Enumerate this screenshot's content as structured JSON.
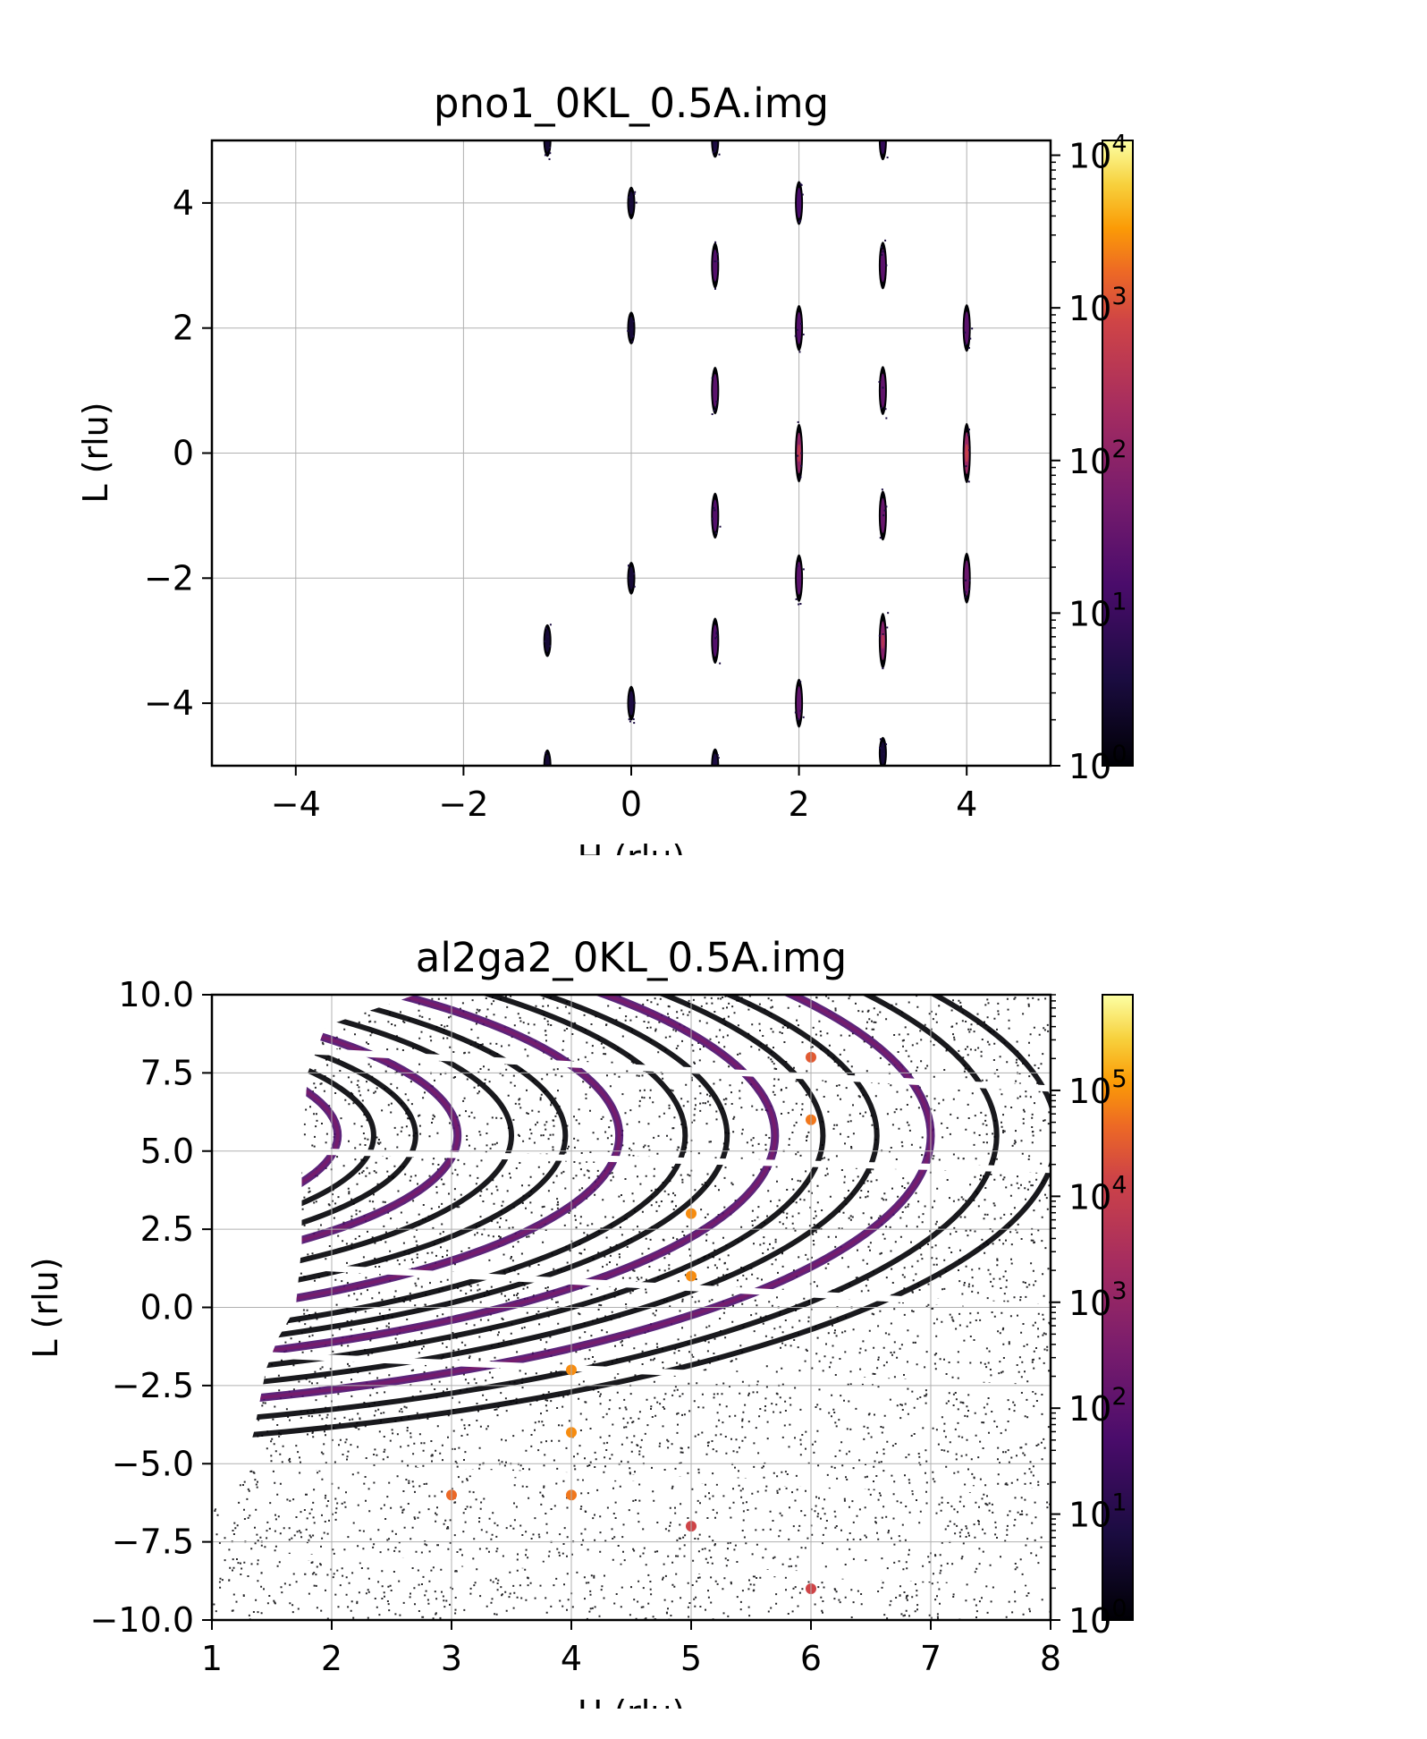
{
  "chart_data": [
    {
      "type": "heatmap",
      "title": "pno1_0KL_0.5A.img",
      "xlabel": "H (rlu)",
      "ylabel": "L (rlu)",
      "xlim": [
        -5,
        5
      ],
      "ylim": [
        -5,
        5
      ],
      "xticks": [
        -4,
        -2,
        0,
        2,
        4
      ],
      "xtick_labels": [
        "−4",
        "−2",
        "0",
        "2",
        "4"
      ],
      "yticks": [
        -4,
        -2,
        0,
        2,
        4
      ],
      "ytick_labels": [
        "−4",
        "−2",
        "0",
        "2",
        "4"
      ],
      "grid": true,
      "colorbar": {
        "scale": "log",
        "colormap": "inferno",
        "range": [
          1,
          12500
        ],
        "ticks": [
          1,
          10,
          100,
          1000,
          10000
        ],
        "tick_labels": [
          "10",
          "10",
          "10",
          "10",
          "10"
        ],
        "tick_exponents": [
          "0",
          "1",
          "2",
          "3",
          "4"
        ]
      },
      "peaks": [
        {
          "h": -1,
          "l": 5,
          "i": 3
        },
        {
          "h": 1,
          "l": 5,
          "i": 4
        },
        {
          "h": 3,
          "l": 5,
          "i": 8
        },
        {
          "h": 0,
          "l": 4,
          "i": 3
        },
        {
          "h": 2,
          "l": 4,
          "i": 15
        },
        {
          "h": 1,
          "l": 3,
          "i": 20
        },
        {
          "h": 3,
          "l": 3,
          "i": 25
        },
        {
          "h": 0,
          "l": 2,
          "i": 3
        },
        {
          "h": 2,
          "l": 2,
          "i": 20
        },
        {
          "h": 4,
          "l": 2,
          "i": 25
        },
        {
          "h": 1,
          "l": 1,
          "i": 25
        },
        {
          "h": 3,
          "l": 1,
          "i": 30
        },
        {
          "h": 2,
          "l": 0,
          "i": 120
        },
        {
          "h": 4,
          "l": 0,
          "i": 150
        },
        {
          "h": 1,
          "l": -1,
          "i": 20
        },
        {
          "h": 3,
          "l": -1,
          "i": 35
        },
        {
          "h": 0,
          "l": -2,
          "i": 3
        },
        {
          "h": 2,
          "l": -2,
          "i": 25
        },
        {
          "h": 4,
          "l": -2,
          "i": 40
        },
        {
          "h": -1,
          "l": -3,
          "i": 3
        },
        {
          "h": 1,
          "l": -3,
          "i": 20
        },
        {
          "h": 3,
          "l": -3,
          "i": 80
        },
        {
          "h": 0,
          "l": -4,
          "i": 4
        },
        {
          "h": 2,
          "l": -4,
          "i": 30
        },
        {
          "h": -1,
          "l": -5,
          "i": 3
        },
        {
          "h": 1,
          "l": -5,
          "i": 4
        },
        {
          "h": 3,
          "l": -4.8,
          "i": 3
        }
      ]
    },
    {
      "type": "heatmap",
      "title": "al2ga2_0KL_0.5A.img",
      "xlabel": "H (rlu)",
      "ylabel": "L (rlu)",
      "xlim": [
        1,
        8
      ],
      "ylim": [
        -10,
        10
      ],
      "xticks": [
        1,
        2,
        3,
        4,
        5,
        6,
        7,
        8
      ],
      "xtick_labels": [
        "1",
        "2",
        "3",
        "4",
        "5",
        "6",
        "7",
        "8"
      ],
      "yticks": [
        -10,
        -7.5,
        -5,
        -2.5,
        0,
        2.5,
        5,
        7.5,
        10
      ],
      "ytick_labels": [
        "−10.0",
        "−7.5",
        "−5.0",
        "−2.5",
        "0.0",
        "2.5",
        "5.0",
        "7.5",
        "10.0"
      ],
      "grid": true,
      "colorbar": {
        "scale": "log",
        "colormap": "inferno",
        "range": [
          1,
          800000
        ],
        "ticks": [
          1,
          10,
          100,
          1000,
          10000,
          100000
        ],
        "tick_labels": [
          "10",
          "10",
          "10",
          "10",
          "10",
          "10"
        ],
        "tick_exponents": [
          "0",
          "1",
          "2",
          "3",
          "4",
          "5"
        ]
      },
      "powder_rings_center": [
        -1.5,
        5.5
      ],
      "powder_ring_radii": [
        3.0,
        3.55,
        3.85,
        4.2,
        4.55,
        5.0,
        5.45,
        5.9,
        6.45,
        6.8,
        7.2,
        7.6,
        8.05,
        8.5,
        9.05,
        9.55
      ],
      "bragg_peaks": [
        {
          "h": 4,
          "l": -2,
          "i": 3000
        },
        {
          "h": 4,
          "l": -4,
          "i": 3000
        },
        {
          "h": 4,
          "l": -6,
          "i": 2000
        },
        {
          "h": 5,
          "l": 1,
          "i": 3000
        },
        {
          "h": 5,
          "l": 3,
          "i": 3000
        },
        {
          "h": 3,
          "l": -6,
          "i": 1500
        },
        {
          "h": 6,
          "l": 6,
          "i": 2000
        },
        {
          "h": 6,
          "l": 8,
          "i": 1000
        },
        {
          "h": 5,
          "l": -7,
          "i": 500
        },
        {
          "h": 6,
          "l": -9,
          "i": 500
        }
      ]
    }
  ]
}
